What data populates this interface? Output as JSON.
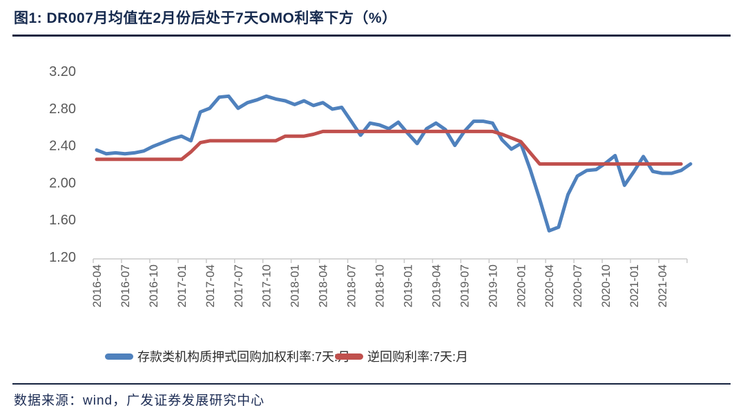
{
  "figure": {
    "title": "图1:  DR007月均值在2月份后处于7天OMO利率下方（%）",
    "source": "数据来源：wind，广发证券发展研究中心"
  },
  "chart_data": {
    "type": "line",
    "title": "DR007月均值在2月份后处于7天OMO利率下方（%）",
    "xlabel": "",
    "ylabel": "",
    "ylim": [
      1.2,
      3.2
    ],
    "ytick_labels": [
      "3.20",
      "2.80",
      "2.40",
      "2.00",
      "1.60",
      "1.20"
    ],
    "yticks": [
      3.2,
      2.8,
      2.4,
      2.0,
      1.6,
      1.2
    ],
    "grid": false,
    "legend_position": "bottom",
    "axis_color": "#c8c8c8",
    "tick_label_color": "#595959",
    "xtick_labels": [
      "2016-04",
      "2016-07",
      "2016-10",
      "2017-01",
      "2017-04",
      "2017-07",
      "2017-10",
      "2018-01",
      "2018-04",
      "2018-07",
      "2018-10",
      "2019-01",
      "2019-04",
      "2019-07",
      "2019-10",
      "2020-01",
      "2020-04",
      "2020-07",
      "2020-10",
      "2021-01",
      "2021-04"
    ],
    "x": [
      "2016-04",
      "2016-05",
      "2016-06",
      "2016-07",
      "2016-08",
      "2016-09",
      "2016-10",
      "2016-11",
      "2016-12",
      "2017-01",
      "2017-02",
      "2017-03",
      "2017-04",
      "2017-05",
      "2017-06",
      "2017-07",
      "2017-08",
      "2017-09",
      "2017-10",
      "2017-11",
      "2017-12",
      "2018-01",
      "2018-02",
      "2018-03",
      "2018-04",
      "2018-05",
      "2018-06",
      "2018-07",
      "2018-08",
      "2018-09",
      "2018-10",
      "2018-11",
      "2018-12",
      "2019-01",
      "2019-02",
      "2019-03",
      "2019-04",
      "2019-05",
      "2019-06",
      "2019-07",
      "2019-08",
      "2019-09",
      "2019-10",
      "2019-11",
      "2019-12",
      "2020-01",
      "2020-02",
      "2020-03",
      "2020-04",
      "2020-05",
      "2020-06",
      "2020-07",
      "2020-08",
      "2020-09",
      "2020-10",
      "2020-11",
      "2020-12",
      "2021-01",
      "2021-02",
      "2021-03",
      "2021-04",
      "2021-05",
      "2021-06",
      "2021-07"
    ],
    "series": [
      {
        "name": "存款类机构质押式回购加权利率:7天:月",
        "color": "#4F81BD",
        "values": [
          2.35,
          2.31,
          2.32,
          2.31,
          2.32,
          2.34,
          2.39,
          2.43,
          2.47,
          2.5,
          2.45,
          2.76,
          2.8,
          2.92,
          2.93,
          2.8,
          2.86,
          2.89,
          2.93,
          2.9,
          2.88,
          2.84,
          2.88,
          2.83,
          2.86,
          2.79,
          2.81,
          2.66,
          2.51,
          2.64,
          2.62,
          2.58,
          2.65,
          2.53,
          2.42,
          2.58,
          2.64,
          2.57,
          2.4,
          2.55,
          2.66,
          2.66,
          2.64,
          2.46,
          2.36,
          2.42,
          2.14,
          1.82,
          1.48,
          1.52,
          1.87,
          2.07,
          2.13,
          2.14,
          2.21,
          2.29,
          1.97,
          2.12,
          2.28,
          2.12,
          2.1,
          2.1,
          2.13,
          2.2
        ]
      },
      {
        "name": "逆回购利率:7天:月",
        "color": "#C0504D",
        "values": [
          2.25,
          2.25,
          2.25,
          2.25,
          2.25,
          2.25,
          2.25,
          2.25,
          2.25,
          2.25,
          2.33,
          2.43,
          2.45,
          2.45,
          2.45,
          2.45,
          2.45,
          2.45,
          2.45,
          2.45,
          2.5,
          2.5,
          2.5,
          2.52,
          2.55,
          2.55,
          2.55,
          2.55,
          2.55,
          2.55,
          2.55,
          2.55,
          2.55,
          2.55,
          2.55,
          2.55,
          2.55,
          2.55,
          2.55,
          2.55,
          2.55,
          2.55,
          2.55,
          2.52,
          2.48,
          2.44,
          2.32,
          2.2,
          2.2,
          2.2,
          2.2,
          2.2,
          2.2,
          2.2,
          2.2,
          2.2,
          2.2,
          2.2,
          2.2,
          2.2,
          2.2,
          2.2,
          2.2,
          null
        ]
      }
    ]
  }
}
